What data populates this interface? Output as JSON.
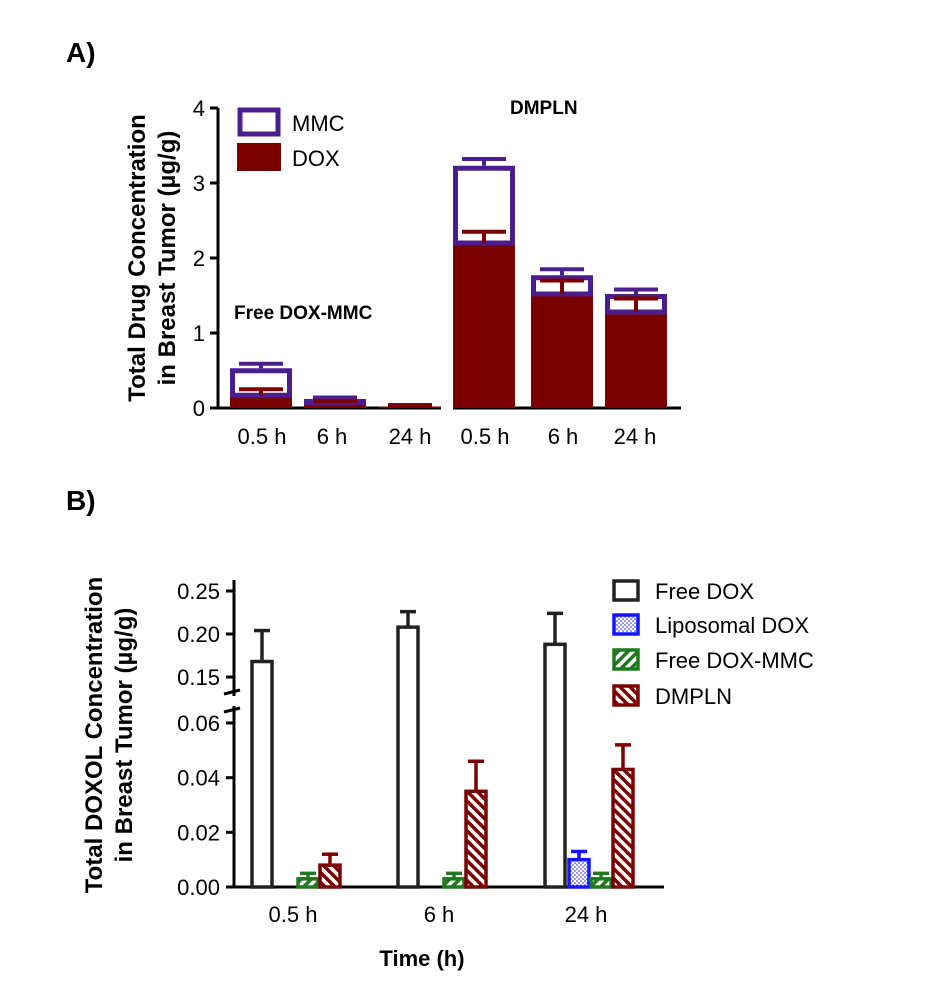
{
  "panel_a_label": "A)",
  "panel_b_label": "B)",
  "colors": {
    "mmc": "#4b1e8f",
    "dox": "#7b0000",
    "free_dox": "#222222",
    "liposomal_dox": "#1414ff",
    "free_dox_mmc": "#1f7a1f",
    "dmpln": "#7b0000"
  },
  "chart_data": [
    {
      "type": "bar",
      "stacked": true,
      "ylabel_line1": "Total Drug Concentration",
      "ylabel_line2": "in Breast Tumor (µg/g)",
      "ylim": [
        0,
        4
      ],
      "yticks": [
        "0",
        "1",
        "2",
        "3",
        "4"
      ],
      "groups": [
        {
          "label": "Free DOX-MMC",
          "categories": [
            "0.5 h",
            "6 h",
            "24 h"
          ]
        },
        {
          "label": "DMPLN",
          "categories": [
            "0.5 h",
            "6 h",
            "24 h"
          ]
        }
      ],
      "series": [
        {
          "name": "MMC",
          "total": [
            0.53,
            0.12,
            0.03,
            3.23,
            1.77,
            1.52
          ],
          "error_total": [
            0.06,
            0.02,
            0.01,
            0.09,
            0.08,
            0.06
          ]
        },
        {
          "name": "DOX",
          "values": [
            0.17,
            0.07,
            0.02,
            2.2,
            1.52,
            1.28
          ],
          "error": [
            0.08,
            0.02,
            0.01,
            0.15,
            0.18,
            0.18
          ]
        }
      ],
      "legend": [
        "MMC",
        "DOX"
      ],
      "legend_position": "top-left"
    },
    {
      "type": "bar",
      "broken_axis": true,
      "ylabel_line1": "Total DOXOL Concentration",
      "ylabel_line2": "in Breast Tumor (µg/g)",
      "xlabel": "Time (h)",
      "categories": [
        "0.5 h",
        "6 h",
        "24 h"
      ],
      "ylim_lower": [
        0,
        0.065
      ],
      "ylim_upper": [
        0.14,
        0.25
      ],
      "yticks_lower": [
        "0.00",
        "0.02",
        "0.04",
        "0.06"
      ],
      "yticks_upper": [
        "0.15",
        "0.20",
        "0.25"
      ],
      "series": [
        {
          "name": "Free DOX",
          "values": [
            0.168,
            0.208,
            0.188
          ],
          "error": [
            0.036,
            0.018,
            0.036
          ]
        },
        {
          "name": "Liposomal DOX",
          "values": [
            0,
            0,
            0.01
          ],
          "error": [
            0,
            0,
            0.003
          ]
        },
        {
          "name": "Free DOX-MMC",
          "values": [
            0.003,
            0.003,
            0.003
          ],
          "error": [
            0.002,
            0.002,
            0.002
          ]
        },
        {
          "name": "DMPLN",
          "values": [
            0.008,
            0.035,
            0.043
          ],
          "error": [
            0.004,
            0.011,
            0.009
          ]
        }
      ],
      "legend": [
        "Free DOX",
        "Liposomal DOX",
        "Free DOX-MMC",
        "DMPLN"
      ],
      "legend_position": "top-right"
    }
  ]
}
